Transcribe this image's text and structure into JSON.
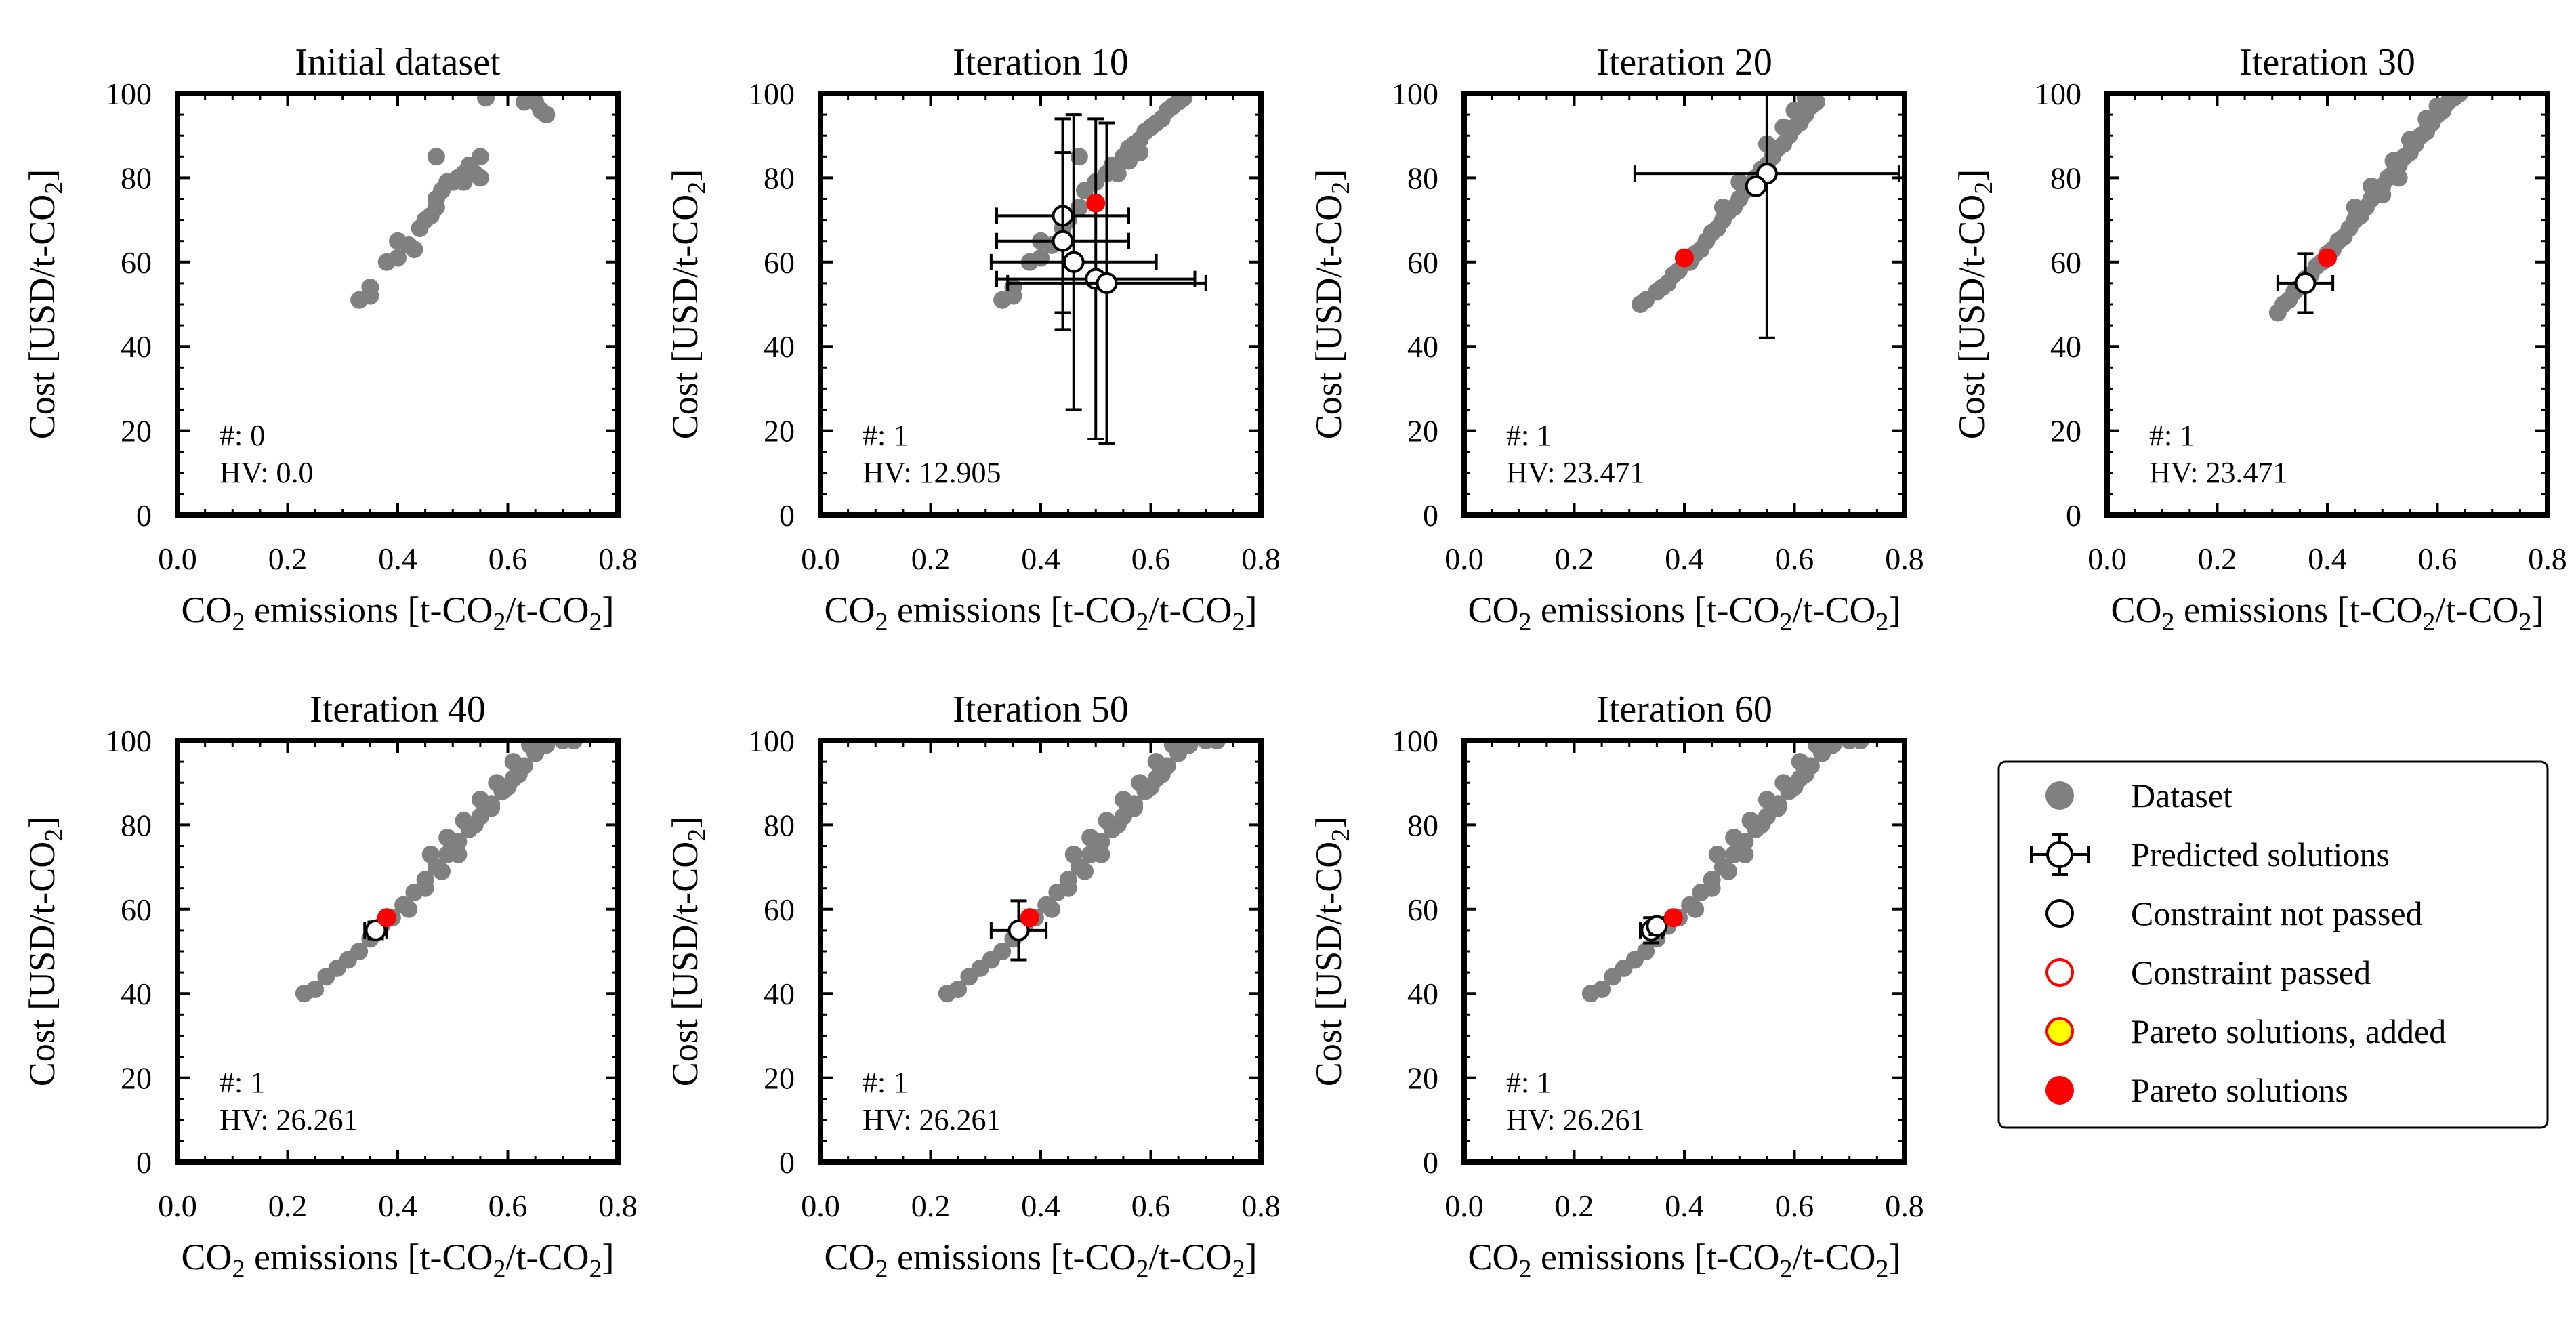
{
  "figure": {
    "x_label_prefix": "CO",
    "x_label_mid": " emissions [t-CO",
    "x_label_slash": "/t-CO",
    "x_label_end": "]",
    "y_label_prefix": "Cost [USD/t-CO",
    "y_label_end": "]",
    "subscript": "2",
    "count_prefix": "#: ",
    "hv_prefix": "HV: "
  },
  "legend": {
    "items": [
      {
        "label": "Dataset",
        "marker": "gray-dot"
      },
      {
        "label": "Predicted solutions",
        "marker": "errorbar-circle"
      },
      {
        "label": "Constraint not passed",
        "marker": "black-ring"
      },
      {
        "label": "Constraint passed",
        "marker": "red-ring"
      },
      {
        "label": "Pareto solutions, added",
        "marker": "yellow-dot"
      },
      {
        "label": "Pareto solutions",
        "marker": "red-dot"
      }
    ]
  },
  "colors": {
    "dataset": "#808080",
    "pareto": "#ff0000",
    "pareto_added": "#ffff00",
    "predicted_edge": "#000000",
    "axis": "#000000"
  },
  "chart_data": [
    {
      "type": "scatter",
      "title": "Initial dataset",
      "count": "0",
      "hv": "0.0",
      "xlim": [
        0.0,
        0.8
      ],
      "ylim": [
        0,
        100
      ],
      "xticks": [
        "0.0",
        "0.2",
        "0.4",
        "0.6",
        "0.8"
      ],
      "yticks": [
        "0",
        "20",
        "40",
        "60",
        "80",
        "100"
      ],
      "dataset": [
        [
          0.33,
          51
        ],
        [
          0.35,
          52
        ],
        [
          0.35,
          54
        ],
        [
          0.38,
          60
        ],
        [
          0.4,
          61
        ],
        [
          0.4,
          65
        ],
        [
          0.42,
          64
        ],
        [
          0.43,
          63
        ],
        [
          0.44,
          68
        ],
        [
          0.45,
          70
        ],
        [
          0.46,
          71
        ],
        [
          0.47,
          73
        ],
        [
          0.47,
          75
        ],
        [
          0.48,
          77
        ],
        [
          0.49,
          79
        ],
        [
          0.5,
          79
        ],
        [
          0.51,
          80
        ],
        [
          0.52,
          81
        ],
        [
          0.52,
          79
        ],
        [
          0.54,
          81
        ],
        [
          0.55,
          80
        ],
        [
          0.53,
          83
        ],
        [
          0.55,
          85
        ],
        [
          0.47,
          85
        ],
        [
          0.56,
          99
        ],
        [
          0.63,
          98
        ],
        [
          0.65,
          98
        ],
        [
          0.66,
          96
        ],
        [
          0.67,
          95
        ]
      ],
      "predicted": [],
      "pareto": []
    },
    {
      "type": "scatter",
      "title": "Iteration 10",
      "count": "1",
      "hv": "12.905",
      "xlim": [
        0.0,
        0.8
      ],
      "ylim": [
        0,
        100
      ],
      "xticks": [
        "0.0",
        "0.2",
        "0.4",
        "0.6",
        "0.8"
      ],
      "yticks": [
        "0",
        "20",
        "40",
        "60",
        "80",
        "100"
      ],
      "dataset": [
        [
          0.33,
          51
        ],
        [
          0.35,
          52
        ],
        [
          0.35,
          54
        ],
        [
          0.38,
          60
        ],
        [
          0.4,
          61
        ],
        [
          0.4,
          65
        ],
        [
          0.42,
          64
        ],
        [
          0.44,
          68
        ],
        [
          0.45,
          70
        ],
        [
          0.47,
          73
        ],
        [
          0.48,
          77
        ],
        [
          0.5,
          79
        ],
        [
          0.52,
          81
        ],
        [
          0.54,
          81
        ],
        [
          0.55,
          85
        ],
        [
          0.47,
          85
        ],
        [
          0.56,
          87
        ],
        [
          0.57,
          88
        ],
        [
          0.58,
          89
        ],
        [
          0.59,
          91
        ],
        [
          0.6,
          92
        ],
        [
          0.61,
          93
        ],
        [
          0.62,
          94
        ],
        [
          0.63,
          96
        ],
        [
          0.64,
          97
        ],
        [
          0.65,
          98
        ],
        [
          0.66,
          99
        ],
        [
          0.53,
          83
        ],
        [
          0.56,
          84
        ],
        [
          0.58,
          86
        ]
      ],
      "predicted": [
        {
          "x": 0.44,
          "y": 71,
          "xerr": 0.12,
          "yerr": 23
        },
        {
          "x": 0.44,
          "y": 65,
          "xerr": 0.12,
          "yerr": 21
        },
        {
          "x": 0.46,
          "y": 60,
          "xerr": 0.15,
          "yerr": 35
        },
        {
          "x": 0.5,
          "y": 56,
          "xerr": 0.18,
          "yerr": 38
        },
        {
          "x": 0.52,
          "y": 55,
          "xerr": 0.18,
          "yerr": 38
        }
      ],
      "pareto": [
        [
          0.5,
          74
        ]
      ]
    },
    {
      "type": "scatter",
      "title": "Iteration 20",
      "count": "1",
      "hv": "23.471",
      "xlim": [
        0.0,
        0.8
      ],
      "ylim": [
        0,
        100
      ],
      "xticks": [
        "0.0",
        "0.2",
        "0.4",
        "0.6",
        "0.8"
      ],
      "yticks": [
        "0",
        "20",
        "40",
        "60",
        "80",
        "100"
      ],
      "dataset": [
        [
          0.32,
          50
        ],
        [
          0.33,
          51
        ],
        [
          0.35,
          53
        ],
        [
          0.36,
          54
        ],
        [
          0.37,
          55
        ],
        [
          0.38,
          57
        ],
        [
          0.39,
          58
        ],
        [
          0.41,
          60
        ],
        [
          0.42,
          62
        ],
        [
          0.43,
          63
        ],
        [
          0.44,
          65
        ],
        [
          0.45,
          67
        ],
        [
          0.46,
          68
        ],
        [
          0.47,
          70
        ],
        [
          0.48,
          72
        ],
        [
          0.49,
          73
        ],
        [
          0.5,
          75
        ],
        [
          0.51,
          77
        ],
        [
          0.52,
          78
        ],
        [
          0.53,
          80
        ],
        [
          0.54,
          82
        ],
        [
          0.55,
          83
        ],
        [
          0.56,
          85
        ],
        [
          0.57,
          87
        ],
        [
          0.58,
          88
        ],
        [
          0.59,
          90
        ],
        [
          0.6,
          92
        ],
        [
          0.61,
          93
        ],
        [
          0.62,
          95
        ],
        [
          0.63,
          97
        ],
        [
          0.64,
          98
        ],
        [
          0.47,
          73
        ],
        [
          0.5,
          79
        ],
        [
          0.55,
          88
        ],
        [
          0.58,
          92
        ],
        [
          0.6,
          96
        ],
        [
          0.62,
          99
        ]
      ],
      "predicted": [
        {
          "x": 0.55,
          "y": 81,
          "xerr": 0.24,
          "yerr": 39
        },
        {
          "x": 0.53,
          "y": 78,
          "xerr": 0.0,
          "yerr": 0
        }
      ],
      "pareto": [
        [
          0.4,
          61
        ]
      ]
    },
    {
      "type": "scatter",
      "title": "Iteration 30",
      "count": "1",
      "hv": "23.471",
      "xlim": [
        0.0,
        0.8
      ],
      "ylim": [
        0,
        100
      ],
      "xticks": [
        "0.0",
        "0.2",
        "0.4",
        "0.6",
        "0.8"
      ],
      "yticks": [
        "0",
        "20",
        "40",
        "60",
        "80",
        "100"
      ],
      "dataset": [
        [
          0.31,
          48
        ],
        [
          0.32,
          50
        ],
        [
          0.33,
          51
        ],
        [
          0.34,
          53
        ],
        [
          0.35,
          54
        ],
        [
          0.36,
          56
        ],
        [
          0.37,
          57
        ],
        [
          0.38,
          59
        ],
        [
          0.39,
          60
        ],
        [
          0.4,
          62
        ],
        [
          0.41,
          63
        ],
        [
          0.42,
          65
        ],
        [
          0.43,
          66
        ],
        [
          0.44,
          68
        ],
        [
          0.45,
          70
        ],
        [
          0.46,
          71
        ],
        [
          0.47,
          73
        ],
        [
          0.48,
          75
        ],
        [
          0.49,
          76
        ],
        [
          0.5,
          78
        ],
        [
          0.51,
          80
        ],
        [
          0.52,
          81
        ],
        [
          0.53,
          83
        ],
        [
          0.54,
          85
        ],
        [
          0.55,
          86
        ],
        [
          0.56,
          88
        ],
        [
          0.57,
          90
        ],
        [
          0.58,
          91
        ],
        [
          0.59,
          93
        ],
        [
          0.6,
          95
        ],
        [
          0.61,
          96
        ],
        [
          0.62,
          98
        ],
        [
          0.63,
          99
        ],
        [
          0.64,
          100
        ],
        [
          0.45,
          73
        ],
        [
          0.48,
          78
        ],
        [
          0.52,
          84
        ],
        [
          0.55,
          89
        ],
        [
          0.58,
          94
        ],
        [
          0.6,
          97
        ],
        [
          0.5,
          76
        ],
        [
          0.53,
          80
        ]
      ],
      "predicted": [
        {
          "x": 0.36,
          "y": 55,
          "xerr": 0.05,
          "yerr": 7
        }
      ],
      "pareto": [
        [
          0.4,
          61
        ]
      ]
    },
    {
      "type": "scatter",
      "title": "Iteration 40",
      "count": "1",
      "hv": "26.261",
      "xlim": [
        0.0,
        0.8
      ],
      "ylim": [
        0,
        100
      ],
      "xticks": [
        "0.0",
        "0.2",
        "0.4",
        "0.6",
        "0.8"
      ],
      "yticks": [
        "0",
        "20",
        "40",
        "60",
        "80",
        "100"
      ],
      "dataset": [
        [
          0.23,
          40
        ],
        [
          0.25,
          41
        ],
        [
          0.27,
          44
        ],
        [
          0.29,
          46
        ],
        [
          0.31,
          48
        ],
        [
          0.33,
          50
        ],
        [
          0.35,
          53
        ],
        [
          0.37,
          56
        ],
        [
          0.39,
          58
        ],
        [
          0.41,
          61
        ],
        [
          0.43,
          64
        ],
        [
          0.45,
          67
        ],
        [
          0.47,
          70
        ],
        [
          0.49,
          73
        ],
        [
          0.51,
          76
        ],
        [
          0.53,
          79
        ],
        [
          0.55,
          82
        ],
        [
          0.57,
          85
        ],
        [
          0.59,
          88
        ],
        [
          0.61,
          91
        ],
        [
          0.63,
          94
        ],
        [
          0.65,
          97
        ],
        [
          0.67,
          99
        ],
        [
          0.7,
          100
        ],
        [
          0.72,
          100
        ],
        [
          0.46,
          73
        ],
        [
          0.49,
          77
        ],
        [
          0.52,
          81
        ],
        [
          0.55,
          86
        ],
        [
          0.58,
          90
        ],
        [
          0.61,
          95
        ],
        [
          0.64,
          99
        ],
        [
          0.62,
          92
        ],
        [
          0.6,
          89
        ],
        [
          0.54,
          80
        ],
        [
          0.57,
          84
        ],
        [
          0.42,
          60
        ],
        [
          0.45,
          65
        ],
        [
          0.48,
          69
        ],
        [
          0.51,
          73
        ]
      ],
      "predicted": [
        {
          "x": 0.36,
          "y": 55,
          "xerr": 0.02,
          "yerr": 2
        }
      ],
      "pareto": [
        [
          0.38,
          58
        ]
      ]
    },
    {
      "type": "scatter",
      "title": "Iteration 50",
      "count": "1",
      "hv": "26.261",
      "xlim": [
        0.0,
        0.8
      ],
      "ylim": [
        0,
        100
      ],
      "xticks": [
        "0.0",
        "0.2",
        "0.4",
        "0.6",
        "0.8"
      ],
      "yticks": [
        "0",
        "20",
        "40",
        "60",
        "80",
        "100"
      ],
      "dataset": [
        [
          0.23,
          40
        ],
        [
          0.25,
          41
        ],
        [
          0.27,
          44
        ],
        [
          0.29,
          46
        ],
        [
          0.31,
          48
        ],
        [
          0.33,
          50
        ],
        [
          0.35,
          53
        ],
        [
          0.37,
          56
        ],
        [
          0.39,
          58
        ],
        [
          0.41,
          61
        ],
        [
          0.43,
          64
        ],
        [
          0.45,
          67
        ],
        [
          0.47,
          70
        ],
        [
          0.49,
          73
        ],
        [
          0.51,
          76
        ],
        [
          0.53,
          79
        ],
        [
          0.55,
          82
        ],
        [
          0.57,
          85
        ],
        [
          0.59,
          88
        ],
        [
          0.61,
          91
        ],
        [
          0.63,
          94
        ],
        [
          0.65,
          97
        ],
        [
          0.67,
          99
        ],
        [
          0.7,
          100
        ],
        [
          0.72,
          100
        ],
        [
          0.46,
          73
        ],
        [
          0.49,
          77
        ],
        [
          0.52,
          81
        ],
        [
          0.55,
          86
        ],
        [
          0.58,
          90
        ],
        [
          0.61,
          95
        ],
        [
          0.64,
          99
        ],
        [
          0.62,
          92
        ],
        [
          0.6,
          89
        ],
        [
          0.54,
          80
        ],
        [
          0.57,
          84
        ],
        [
          0.42,
          60
        ],
        [
          0.45,
          65
        ],
        [
          0.48,
          69
        ],
        [
          0.51,
          73
        ]
      ],
      "predicted": [
        {
          "x": 0.36,
          "y": 55,
          "xerr": 0.05,
          "yerr": 7
        }
      ],
      "pareto": [
        [
          0.38,
          58
        ]
      ]
    },
    {
      "type": "scatter",
      "title": "Iteration 60",
      "count": "1",
      "hv": "26.261",
      "xlim": [
        0.0,
        0.8
      ],
      "ylim": [
        0,
        100
      ],
      "xticks": [
        "0.0",
        "0.2",
        "0.4",
        "0.6",
        "0.8"
      ],
      "yticks": [
        "0",
        "20",
        "40",
        "60",
        "80",
        "100"
      ],
      "dataset": [
        [
          0.23,
          40
        ],
        [
          0.25,
          41
        ],
        [
          0.27,
          44
        ],
        [
          0.29,
          46
        ],
        [
          0.31,
          48
        ],
        [
          0.33,
          50
        ],
        [
          0.35,
          53
        ],
        [
          0.37,
          56
        ],
        [
          0.39,
          58
        ],
        [
          0.41,
          61
        ],
        [
          0.43,
          64
        ],
        [
          0.45,
          67
        ],
        [
          0.47,
          70
        ],
        [
          0.49,
          73
        ],
        [
          0.51,
          76
        ],
        [
          0.53,
          79
        ],
        [
          0.55,
          82
        ],
        [
          0.57,
          85
        ],
        [
          0.59,
          88
        ],
        [
          0.61,
          91
        ],
        [
          0.63,
          94
        ],
        [
          0.65,
          97
        ],
        [
          0.67,
          99
        ],
        [
          0.7,
          100
        ],
        [
          0.72,
          100
        ],
        [
          0.46,
          73
        ],
        [
          0.49,
          77
        ],
        [
          0.52,
          81
        ],
        [
          0.55,
          86
        ],
        [
          0.58,
          90
        ],
        [
          0.61,
          95
        ],
        [
          0.64,
          99
        ],
        [
          0.62,
          92
        ],
        [
          0.6,
          89
        ],
        [
          0.54,
          80
        ],
        [
          0.57,
          84
        ],
        [
          0.42,
          60
        ],
        [
          0.45,
          65
        ],
        [
          0.48,
          69
        ],
        [
          0.51,
          73
        ]
      ],
      "predicted": [
        {
          "x": 0.34,
          "y": 55,
          "xerr": 0.02,
          "yerr": 3
        },
        {
          "x": 0.35,
          "y": 56,
          "xerr": 0.01,
          "yerr": 2
        }
      ],
      "pareto": [
        [
          0.38,
          58
        ]
      ]
    }
  ]
}
